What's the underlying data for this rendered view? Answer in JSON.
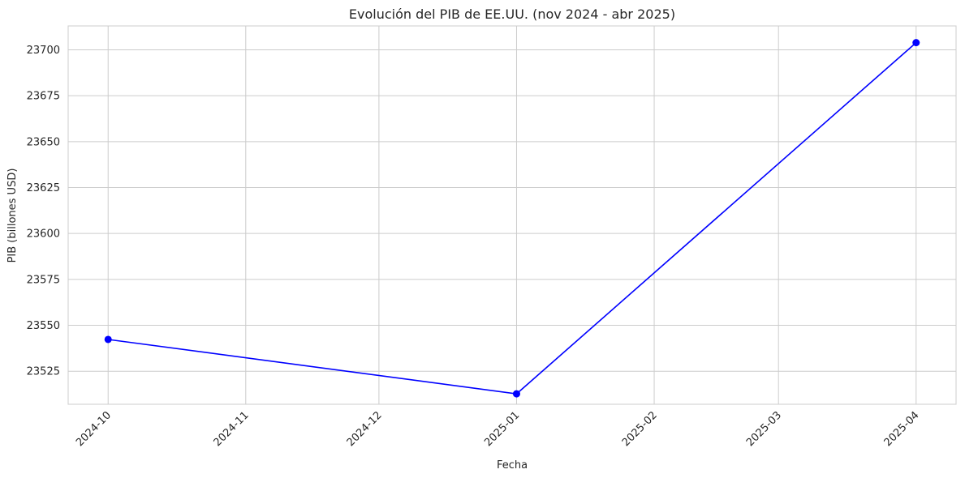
{
  "chart_data": {
    "type": "line",
    "title": "Evolución del PIB de EE.UU. (nov 2024 - abr 2025)",
    "xlabel": "Fecha",
    "ylabel": "PIB (billones USD)",
    "x_ticks": [
      "2024-10",
      "2024-11",
      "2024-12",
      "2025-01",
      "2025-02",
      "2025-03",
      "2025-04"
    ],
    "y_ticks": [
      23525,
      23550,
      23575,
      23600,
      23625,
      23650,
      23675,
      23700
    ],
    "ylim": [
      23507,
      23713
    ],
    "xlim": [
      "2024-09-22",
      "2025-04-10"
    ],
    "grid": true,
    "series": [
      {
        "color": "#0000ff",
        "marker": "circle",
        "points": [
          {
            "x": "2024-10-01",
            "y": 23542.3
          },
          {
            "x": "2025-01-01",
            "y": 23512.7
          },
          {
            "x": "2025-04-01",
            "y": 23703.9
          }
        ]
      }
    ]
  }
}
